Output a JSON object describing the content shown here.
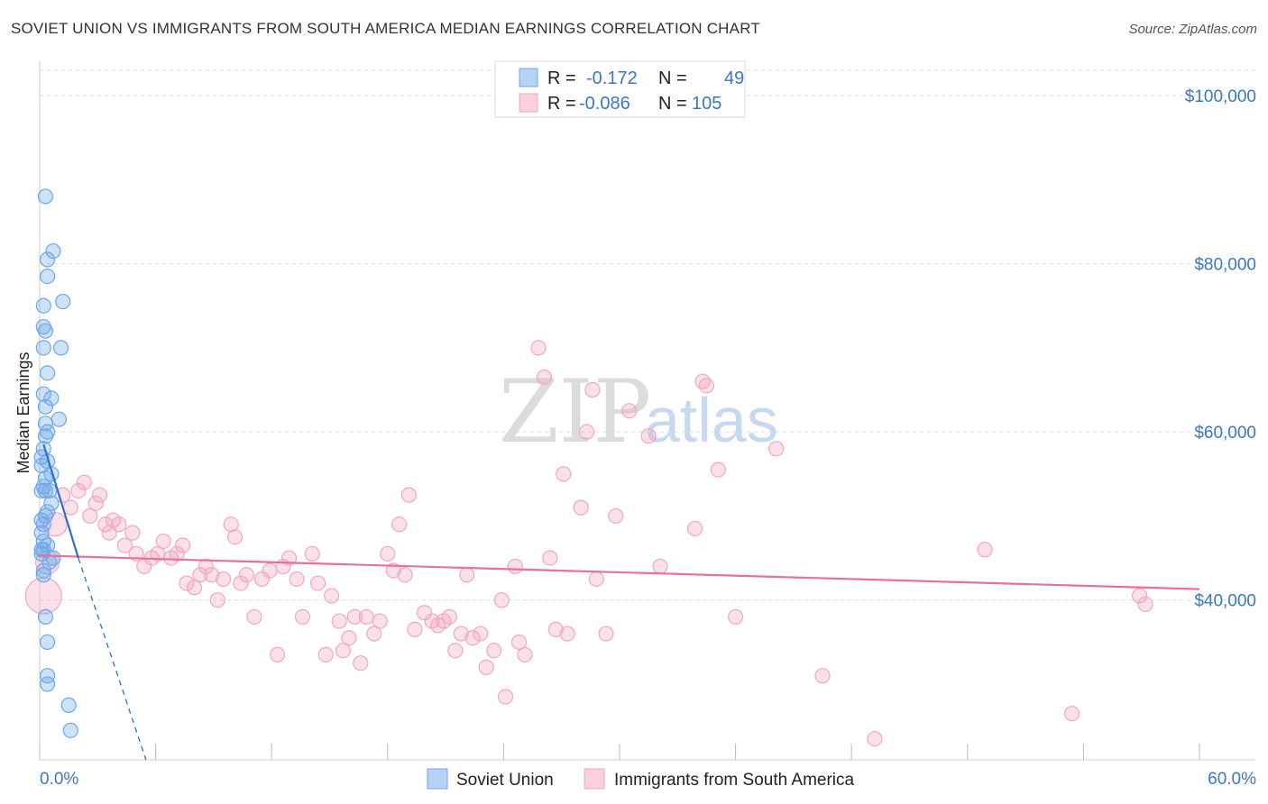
{
  "title": "SOVIET UNION VS IMMIGRANTS FROM SOUTH AMERICA MEDIAN EARNINGS CORRELATION CHART",
  "source": "Source: ZipAtlas.com",
  "watermark": {
    "zip": "ZIP",
    "atlas": "atlas"
  },
  "colors": {
    "blue": "#6fa8e8",
    "blue_line": "#2e6fd0",
    "pink": "#f2a7c0",
    "pink_line": "#e8709a",
    "accent_text": "#3a77c8"
  },
  "legend": {
    "r_label": "R =",
    "n_label": "N =",
    "rows": [
      {
        "series": "Soviet Union",
        "r": "-0.172",
        "n": "49"
      },
      {
        "series": "Immigrants from South America",
        "r": "-0.086",
        "n": "105"
      }
    ]
  },
  "chart_data": {
    "type": "scatter",
    "title": "SOVIET UNION VS IMMIGRANTS FROM SOUTH AMERICA MEDIAN EARNINGS CORRELATION CHART",
    "xlabel": "",
    "ylabel": "Median Earnings",
    "x_tick_labels": [
      "0.0%",
      "60.0%"
    ],
    "y_tick_labels": [
      "$40,000",
      "$60,000",
      "$80,000",
      "$100,000"
    ],
    "xlim": [
      0,
      60
    ],
    "ylim": [
      21000,
      103000
    ],
    "grid": true,
    "legend_position": "top-center",
    "series": [
      {
        "name": "Soviet Union",
        "trend": {
          "x0": 0.2,
          "y0": 58500,
          "x1": 2.0,
          "y1": 45000,
          "dashed_to_x": 5.5
        },
        "points": [
          [
            0.3,
            88000
          ],
          [
            0.7,
            81500
          ],
          [
            0.4,
            80500
          ],
          [
            0.4,
            78500
          ],
          [
            1.2,
            75500
          ],
          [
            0.2,
            75000
          ],
          [
            0.2,
            72500
          ],
          [
            0.3,
            72000
          ],
          [
            1.1,
            70000
          ],
          [
            0.2,
            70000
          ],
          [
            0.4,
            67000
          ],
          [
            0.2,
            64500
          ],
          [
            0.6,
            64000
          ],
          [
            0.3,
            63000
          ],
          [
            1.0,
            61500
          ],
          [
            0.3,
            61000
          ],
          [
            0.4,
            60000
          ],
          [
            0.3,
            59500
          ],
          [
            0.2,
            58000
          ],
          [
            0.1,
            57000
          ],
          [
            0.4,
            56500
          ],
          [
            0.1,
            56000
          ],
          [
            0.6,
            55000
          ],
          [
            0.3,
            54500
          ],
          [
            0.2,
            53500
          ],
          [
            0.3,
            53000
          ],
          [
            0.5,
            53000
          ],
          [
            0.1,
            53000
          ],
          [
            0.6,
            51500
          ],
          [
            0.4,
            50500
          ],
          [
            0.3,
            50000
          ],
          [
            0.1,
            49500
          ],
          [
            0.2,
            49000
          ],
          [
            0.1,
            48000
          ],
          [
            0.2,
            47000
          ],
          [
            0.4,
            46500
          ],
          [
            0.1,
            46000
          ],
          [
            0.1,
            45500
          ],
          [
            0.7,
            45000
          ],
          [
            0.5,
            44500
          ],
          [
            0.2,
            43500
          ],
          [
            0.2,
            43000
          ],
          [
            0.3,
            38000
          ],
          [
            0.4,
            35000
          ],
          [
            0.4,
            31000
          ],
          [
            0.4,
            30000
          ],
          [
            1.5,
            27500
          ],
          [
            1.6,
            24500
          ],
          [
            0.2,
            46000
          ]
        ]
      },
      {
        "name": "Immigrants from South America",
        "trend": {
          "x0": 0,
          "y0": 45300,
          "x1": 60,
          "y1": 41300
        },
        "points": [
          [
            0.2,
            40500
          ],
          [
            0.4,
            44500
          ],
          [
            0.8,
            49000
          ],
          [
            1.2,
            52500
          ],
          [
            1.6,
            51000
          ],
          [
            2.0,
            53000
          ],
          [
            2.3,
            54000
          ],
          [
            2.6,
            50000
          ],
          [
            2.9,
            51500
          ],
          [
            3.1,
            52500
          ],
          [
            3.4,
            49000
          ],
          [
            3.6,
            48000
          ],
          [
            3.8,
            49500
          ],
          [
            4.1,
            49000
          ],
          [
            4.4,
            46500
          ],
          [
            4.8,
            48000
          ],
          [
            5.0,
            45500
          ],
          [
            5.4,
            44000
          ],
          [
            5.8,
            45000
          ],
          [
            6.1,
            45500
          ],
          [
            6.4,
            47000
          ],
          [
            6.8,
            45000
          ],
          [
            7.1,
            45500
          ],
          [
            7.4,
            46500
          ],
          [
            7.6,
            42000
          ],
          [
            8.0,
            41500
          ],
          [
            8.3,
            43000
          ],
          [
            8.6,
            44000
          ],
          [
            8.9,
            43000
          ],
          [
            9.2,
            40000
          ],
          [
            9.5,
            42500
          ],
          [
            9.9,
            49000
          ],
          [
            10.1,
            47500
          ],
          [
            10.4,
            42000
          ],
          [
            10.7,
            43000
          ],
          [
            11.1,
            38000
          ],
          [
            11.5,
            42500
          ],
          [
            11.9,
            43500
          ],
          [
            12.3,
            33500
          ],
          [
            12.6,
            44000
          ],
          [
            12.9,
            45000
          ],
          [
            13.3,
            42500
          ],
          [
            13.6,
            38000
          ],
          [
            14.1,
            45500
          ],
          [
            14.4,
            42000
          ],
          [
            14.8,
            33500
          ],
          [
            15.1,
            40500
          ],
          [
            15.5,
            37500
          ],
          [
            15.7,
            34000
          ],
          [
            16.0,
            35500
          ],
          [
            16.3,
            38000
          ],
          [
            16.6,
            32500
          ],
          [
            16.9,
            38000
          ],
          [
            17.3,
            36000
          ],
          [
            17.6,
            37500
          ],
          [
            18.0,
            45500
          ],
          [
            18.3,
            43500
          ],
          [
            18.6,
            49000
          ],
          [
            18.9,
            43000
          ],
          [
            19.1,
            52500
          ],
          [
            19.4,
            36500
          ],
          [
            19.9,
            38500
          ],
          [
            20.3,
            37500
          ],
          [
            20.6,
            37000
          ],
          [
            20.9,
            37500
          ],
          [
            21.2,
            38000
          ],
          [
            21.5,
            34000
          ],
          [
            21.8,
            36000
          ],
          [
            22.1,
            43000
          ],
          [
            22.4,
            35500
          ],
          [
            22.8,
            36000
          ],
          [
            23.1,
            32000
          ],
          [
            23.5,
            34000
          ],
          [
            23.9,
            40000
          ],
          [
            24.1,
            28500
          ],
          [
            24.6,
            44000
          ],
          [
            24.8,
            35000
          ],
          [
            25.1,
            33500
          ],
          [
            25.8,
            70000
          ],
          [
            26.1,
            66500
          ],
          [
            26.4,
            45000
          ],
          [
            26.7,
            36500
          ],
          [
            27.1,
            55000
          ],
          [
            27.3,
            36000
          ],
          [
            28.0,
            51000
          ],
          [
            28.3,
            60000
          ],
          [
            28.6,
            65000
          ],
          [
            28.8,
            42500
          ],
          [
            29.3,
            36000
          ],
          [
            29.8,
            50000
          ],
          [
            30.5,
            62500
          ],
          [
            31.5,
            59500
          ],
          [
            32.1,
            44000
          ],
          [
            33.9,
            48500
          ],
          [
            34.3,
            66000
          ],
          [
            34.5,
            65500
          ],
          [
            35.1,
            55500
          ],
          [
            36.0,
            38000
          ],
          [
            38.1,
            58000
          ],
          [
            40.5,
            31000
          ],
          [
            43.2,
            23500
          ],
          [
            48.9,
            46000
          ],
          [
            53.4,
            26500
          ],
          [
            56.9,
            40500
          ],
          [
            57.2,
            39500
          ]
        ]
      }
    ]
  }
}
